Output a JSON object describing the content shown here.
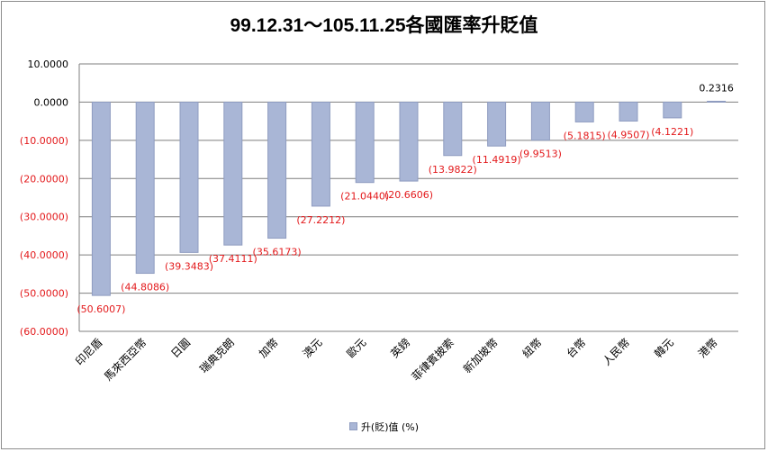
{
  "chart_data": {
    "type": "bar",
    "title": "99.12.31～105.11.25各國匯率升貶值",
    "categories": [
      "印尼盾",
      "馬來西亞幣",
      "日圓",
      "瑞典克朗",
      "加幣",
      "澳元",
      "歐元",
      "英鎊",
      "菲律賓披索",
      "新加坡幣",
      "紐幣",
      "台幣",
      "人民幣",
      "韓元",
      "港幣"
    ],
    "series": [
      {
        "name": "升(貶)值 (%)",
        "values": [
          -50.6007,
          -44.8086,
          -39.3483,
          -37.4111,
          -35.6173,
          -27.2212,
          -21.044,
          -20.6606,
          -13.9822,
          -11.4919,
          -9.9513,
          -5.1815,
          -4.9507,
          -4.1221,
          0.2316
        ],
        "labels": [
          "(50.6007)",
          "(44.8086)",
          "(39.3483)",
          "(37.4111)",
          "(35.6173)",
          "(27.2212)",
          "(21.0440)",
          "(20.6606)",
          "(13.9822)",
          "(11.4919)",
          "(9.9513)",
          "(5.1815)",
          "(4.9507)",
          "(4.1221)",
          "0.2316"
        ]
      }
    ],
    "ylim": [
      -60,
      10
    ],
    "yticks": [
      "10.0000",
      "0.0000",
      "(10.0000)",
      "(20.0000)",
      "(30.0000)",
      "(40.0000)",
      "(50.0000)",
      "(60.0000)"
    ],
    "xlabel": "",
    "ylabel": "",
    "legend": "bottom",
    "grid": true,
    "colors": {
      "bar_fill": "#a9b6d6",
      "bar_stroke": "#8f9cc0",
      "negative_label": "#e31a1c",
      "positive_label": "#000000",
      "tick_label_negative": "#e31a1c",
      "gridline": "#7f7f7f"
    }
  }
}
